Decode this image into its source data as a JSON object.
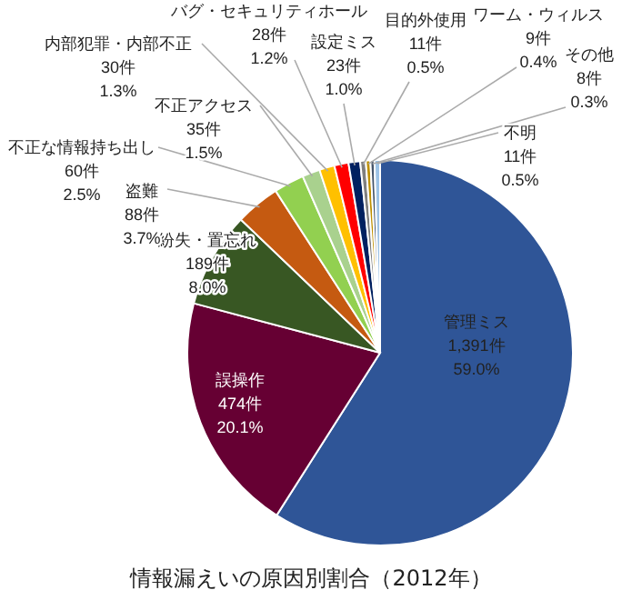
{
  "chart_data": {
    "type": "pie",
    "title": "情報漏えいの原因別割合（2012年）",
    "categories": [
      "管理ミス",
      "誤操作",
      "紛失・置忘れ",
      "盗難",
      "不正な情報持ち出し",
      "不正アクセス",
      "内部犯罪・内部不正",
      "バグ・セキュリティホール",
      "設定ミス",
      "目的外使用",
      "ワーム・ウィルス",
      "その他",
      "不明"
    ],
    "values": [
      1391,
      474,
      189,
      88,
      60,
      35,
      30,
      28,
      23,
      11,
      9,
      8,
      11
    ],
    "value_labels": [
      "1,391件\n59.0%",
      "474件\n20.1%",
      "189件\n8.0%",
      "88件\n3.7%",
      "60件\n2.5%",
      "35件\n1.5%",
      "30件\n1.3%",
      "28件\n1.2%",
      "23件\n1.0%",
      "11件\n0.5%",
      "9件\n0.4%",
      "8件\n0.3%",
      "11件\n0.5%"
    ],
    "colors": [
      "#2f5597",
      "#660033",
      "#385723",
      "#c55a11",
      "#92d050",
      "#a9d18e",
      "#ffc000",
      "#ff0000",
      "#002060",
      "#7f7f7f",
      "#bf9000",
      "#44546a",
      "#9dc3e6"
    ]
  }
}
